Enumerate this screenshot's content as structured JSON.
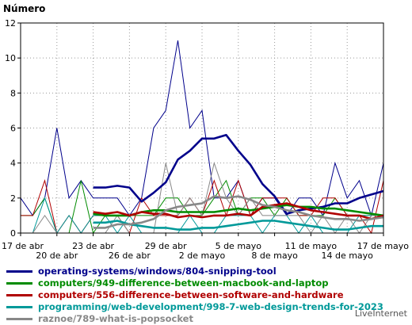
{
  "chart_data": {
    "type": "line",
    "ylabel": "Número",
    "ylim": [
      0,
      12
    ],
    "yticks": [
      0,
      2,
      4,
      6,
      8,
      10,
      12
    ],
    "grid": true,
    "x": [
      "17 de abr",
      "18 de abr",
      "19 de abr",
      "20 de abr",
      "21 de abr",
      "22 de abr",
      "23 de abr",
      "24 de abr",
      "25 de abr",
      "26 de abr",
      "27 de abr",
      "28 de abr",
      "29 de abr",
      "30 de abr",
      "1 de mayo",
      "2 de mayo",
      "3 de mayo",
      "4 de mayo",
      "5 de mayo",
      "6 de mayo",
      "7 de mayo",
      "8 de mayo",
      "9 de mayo",
      "10 de mayo",
      "11 de mayo",
      "12 de mayo",
      "13 de mayo",
      "14 de mayo",
      "15 de mayo",
      "16 de mayo",
      "17 de mayo"
    ],
    "xtick_labels": [
      {
        "index": 0,
        "label": "17 de abr",
        "row": 0
      },
      {
        "index": 3,
        "label": "20 de abr",
        "row": 1
      },
      {
        "index": 6,
        "label": "23 de abr",
        "row": 0
      },
      {
        "index": 9,
        "label": "26 de abr",
        "row": 1
      },
      {
        "index": 12,
        "label": "29 de abr",
        "row": 0
      },
      {
        "index": 15,
        "label": "2 de mayo",
        "row": 1
      },
      {
        "index": 18,
        "label": "5 de mayo",
        "row": 0
      },
      {
        "index": 21,
        "label": "8 de mayo",
        "row": 1
      },
      {
        "index": 24,
        "label": "11 de mayo",
        "row": 0
      },
      {
        "index": 27,
        "label": "14 de mayo",
        "row": 1
      },
      {
        "index": 30,
        "label": "17 de mayo",
        "row": 0
      }
    ],
    "series": [
      {
        "name": "operating-systems/windows/804-snipping-tool",
        "color": "#00008b",
        "values": [
          2,
          1,
          2,
          6,
          2,
          3,
          2,
          2,
          2,
          1,
          2,
          6,
          7,
          11,
          6,
          7,
          2,
          2,
          3,
          1,
          2,
          2,
          1,
          2,
          2,
          1,
          4,
          2,
          3,
          1,
          4
        ],
        "smoothed": [
          null,
          null,
          null,
          null,
          null,
          null,
          2.6,
          2.6,
          2.7,
          2.6,
          1.8,
          2.3,
          2.9,
          4.2,
          4.7,
          5.4,
          5.4,
          5.6,
          4.7,
          3.9,
          2.8,
          2.1,
          1.1,
          1.3,
          1.4,
          1.5,
          1.7,
          1.7,
          2.0,
          2.2,
          2.4
        ]
      },
      {
        "name": "computers/949-difference-between-macbook-and-laptop",
        "color": "#008b00",
        "values": [
          1,
          1,
          2,
          0,
          0,
          3,
          0,
          1,
          1,
          1,
          1,
          1,
          2,
          2,
          1,
          1,
          2,
          3,
          1,
          2,
          2,
          1,
          2,
          1,
          1,
          1,
          2,
          1,
          1,
          1,
          1
        ],
        "smoothed": [
          null,
          null,
          null,
          null,
          null,
          null,
          1.1,
          1.0,
          1.0,
          1.0,
          1.2,
          1.3,
          1.3,
          1.2,
          1.2,
          1.2,
          1.2,
          1.3,
          1.4,
          1.3,
          1.4,
          1.5,
          1.6,
          1.5,
          1.5,
          1.4,
          1.4,
          1.3,
          1.2,
          1.1,
          1.0
        ]
      },
      {
        "name": "computers/556-difference-between-software-and-hardware",
        "color": "#b00000",
        "values": [
          1,
          1,
          3,
          0,
          1,
          0,
          1,
          1,
          1,
          0,
          2,
          1,
          1,
          1,
          2,
          1,
          3,
          1,
          3,
          1,
          2,
          2,
          2,
          1,
          1,
          2,
          2,
          1,
          1,
          0,
          3
        ],
        "smoothed": [
          null,
          null,
          null,
          null,
          null,
          null,
          1.2,
          1.1,
          1.2,
          1.0,
          1.2,
          1.1,
          1.1,
          0.9,
          1.0,
          0.9,
          1.0,
          1.0,
          1.1,
          1.0,
          1.5,
          1.6,
          1.7,
          1.5,
          1.3,
          1.2,
          1.1,
          1.0,
          1.0,
          0.8,
          1.0
        ]
      },
      {
        "name": "programming/web-development/998-7-web-design-trends-for-2023",
        "color": "#009999",
        "values": [
          0,
          0,
          2,
          0,
          1,
          0,
          1,
          1,
          0,
          1,
          0,
          0,
          0,
          0,
          1,
          0,
          0,
          1,
          1,
          1,
          0,
          1,
          1,
          0,
          1,
          0,
          0,
          0,
          1,
          1,
          1
        ],
        "smoothed": [
          null,
          null,
          null,
          null,
          null,
          null,
          0.6,
          0.6,
          0.7,
          0.5,
          0.4,
          0.3,
          0.3,
          0.2,
          0.2,
          0.3,
          0.3,
          0.4,
          0.5,
          0.6,
          0.7,
          0.7,
          0.6,
          0.5,
          0.4,
          0.3,
          0.2,
          0.2,
          0.3,
          0.4,
          0.4
        ]
      },
      {
        "name": "raznoe/789-what-is-popsocket",
        "color": "#888888",
        "values": [
          0,
          0,
          1,
          0,
          0,
          0,
          0,
          0,
          1,
          0,
          0,
          0,
          4,
          1,
          2,
          1,
          4,
          2,
          1,
          2,
          1,
          1,
          1,
          1,
          0,
          1,
          0,
          1,
          0,
          1,
          1
        ],
        "smoothed": [
          null,
          null,
          null,
          null,
          null,
          null,
          0.3,
          0.3,
          0.5,
          0.5,
          0.6,
          0.8,
          1.3,
          1.5,
          1.6,
          1.7,
          2.1,
          2.0,
          2.1,
          1.9,
          1.6,
          1.5,
          1.3,
          1.2,
          1.0,
          0.9,
          0.8,
          0.8,
          0.7,
          0.8,
          0.9
        ]
      }
    ]
  },
  "credit": "LiveInternet"
}
